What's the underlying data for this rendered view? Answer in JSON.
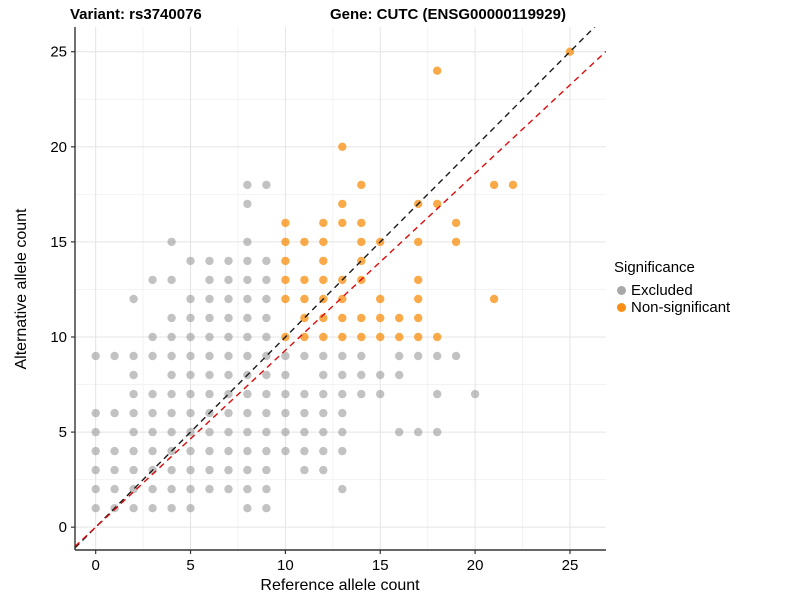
{
  "titles": {
    "left": "Variant: rs3740076",
    "right": "Gene: CUTC (ENSG00000119929)"
  },
  "chart_data": {
    "type": "scatter",
    "xlabel": "Reference allele count",
    "ylabel": "Alternative allele count",
    "xticks": [
      0,
      5,
      10,
      15,
      20,
      25
    ],
    "yticks": [
      0,
      5,
      10,
      15,
      20,
      25
    ],
    "xminor": [
      2.5,
      7.5,
      12.5,
      17.5,
      22.5
    ],
    "yminor": [
      2.5,
      7.5,
      12.5,
      17.5,
      22.5
    ],
    "xlim": [
      -1.09,
      26.9
    ],
    "ylim": [
      -1.2,
      26.3
    ],
    "grid": "major+minor",
    "legend": {
      "title": "Significance",
      "position": "right",
      "items": [
        {
          "label": "Excluded",
          "color": "#A8A8A8"
        },
        {
          "label": "Non-significant",
          "color": "#FB8E14"
        }
      ]
    },
    "lines": [
      {
        "name": "identity-line",
        "slope": 1.0,
        "intercept": 0,
        "color": "#1A1A1A",
        "dashed": true
      },
      {
        "name": "expected-ratio-line",
        "slope": 0.93,
        "intercept": 0,
        "color": "#DE0A0A",
        "dashed": true
      }
    ],
    "series": [
      {
        "name": "Excluded",
        "color": "#8F8F8F",
        "opacity": 0.55,
        "points": [
          [
            0,
            1
          ],
          [
            1,
            1
          ],
          [
            2,
            1
          ],
          [
            3,
            1
          ],
          [
            4,
            1
          ],
          [
            5,
            1
          ],
          [
            8,
            1
          ],
          [
            9,
            1
          ],
          [
            0,
            2
          ],
          [
            1,
            2
          ],
          [
            2,
            2
          ],
          [
            3,
            2
          ],
          [
            4,
            2
          ],
          [
            5,
            2
          ],
          [
            6,
            2
          ],
          [
            7,
            2
          ],
          [
            8,
            2
          ],
          [
            9,
            2
          ],
          [
            13,
            2
          ],
          [
            0,
            3
          ],
          [
            1,
            3
          ],
          [
            2,
            3
          ],
          [
            3,
            3
          ],
          [
            4,
            3
          ],
          [
            5,
            3
          ],
          [
            6,
            3
          ],
          [
            7,
            3
          ],
          [
            8,
            3
          ],
          [
            9,
            3
          ],
          [
            11,
            3
          ],
          [
            12,
            3
          ],
          [
            0,
            4
          ],
          [
            1,
            4
          ],
          [
            2,
            4
          ],
          [
            3,
            4
          ],
          [
            4,
            4
          ],
          [
            5,
            4
          ],
          [
            6,
            4
          ],
          [
            7,
            4
          ],
          [
            8,
            4
          ],
          [
            9,
            4
          ],
          [
            10,
            4
          ],
          [
            11,
            4
          ],
          [
            12,
            4
          ],
          [
            13,
            4
          ],
          [
            0,
            5
          ],
          [
            2,
            5
          ],
          [
            3,
            5
          ],
          [
            4,
            5
          ],
          [
            5,
            5
          ],
          [
            6,
            5
          ],
          [
            7,
            5
          ],
          [
            8,
            5
          ],
          [
            9,
            5
          ],
          [
            10,
            5
          ],
          [
            11,
            5
          ],
          [
            12,
            5
          ],
          [
            13,
            5
          ],
          [
            16,
            5
          ],
          [
            17,
            5
          ],
          [
            18,
            5
          ],
          [
            0,
            6
          ],
          [
            1,
            6
          ],
          [
            2,
            6
          ],
          [
            3,
            6
          ],
          [
            4,
            6
          ],
          [
            5,
            6
          ],
          [
            6,
            6
          ],
          [
            7,
            6
          ],
          [
            8,
            6
          ],
          [
            9,
            6
          ],
          [
            10,
            6
          ],
          [
            11,
            6
          ],
          [
            12,
            6
          ],
          [
            13,
            6
          ],
          [
            2,
            7
          ],
          [
            3,
            7
          ],
          [
            4,
            7
          ],
          [
            5,
            7
          ],
          [
            6,
            7
          ],
          [
            7,
            7
          ],
          [
            8,
            7
          ],
          [
            9,
            7
          ],
          [
            10,
            7
          ],
          [
            11,
            7
          ],
          [
            12,
            7
          ],
          [
            13,
            7
          ],
          [
            14,
            7
          ],
          [
            15,
            7
          ],
          [
            18,
            7
          ],
          [
            20,
            7
          ],
          [
            2,
            8
          ],
          [
            4,
            8
          ],
          [
            5,
            8
          ],
          [
            6,
            8
          ],
          [
            7,
            8
          ],
          [
            8,
            8
          ],
          [
            9,
            8
          ],
          [
            10,
            8
          ],
          [
            12,
            8
          ],
          [
            13,
            8
          ],
          [
            14,
            8
          ],
          [
            15,
            8
          ],
          [
            16,
            8
          ],
          [
            0,
            9
          ],
          [
            1,
            9
          ],
          [
            2,
            9
          ],
          [
            3,
            9
          ],
          [
            4,
            9
          ],
          [
            5,
            9
          ],
          [
            6,
            9
          ],
          [
            7,
            9
          ],
          [
            8,
            9
          ],
          [
            9,
            9
          ],
          [
            10,
            9
          ],
          [
            11,
            9
          ],
          [
            12,
            9
          ],
          [
            13,
            9
          ],
          [
            14,
            9
          ],
          [
            16,
            9
          ],
          [
            17,
            9
          ],
          [
            18,
            9
          ],
          [
            19,
            9
          ],
          [
            3,
            10
          ],
          [
            4,
            10
          ],
          [
            5,
            10
          ],
          [
            6,
            10
          ],
          [
            7,
            10
          ],
          [
            8,
            10
          ],
          [
            9,
            10
          ],
          [
            4,
            11
          ],
          [
            5,
            11
          ],
          [
            6,
            11
          ],
          [
            7,
            11
          ],
          [
            8,
            11
          ],
          [
            9,
            11
          ],
          [
            2,
            12
          ],
          [
            5,
            12
          ],
          [
            6,
            12
          ],
          [
            7,
            12
          ],
          [
            8,
            12
          ],
          [
            9,
            12
          ],
          [
            3,
            13
          ],
          [
            4,
            13
          ],
          [
            6,
            13
          ],
          [
            7,
            13
          ],
          [
            8,
            13
          ],
          [
            9,
            13
          ],
          [
            5,
            14
          ],
          [
            6,
            14
          ],
          [
            7,
            14
          ],
          [
            8,
            14
          ],
          [
            9,
            14
          ],
          [
            4,
            15
          ],
          [
            8,
            15
          ],
          [
            8,
            17
          ],
          [
            8,
            18
          ],
          [
            9,
            18
          ]
        ]
      },
      {
        "name": "Non-significant",
        "color": "#F98903",
        "opacity": 0.72,
        "points": [
          [
            10,
            10
          ],
          [
            11,
            10
          ],
          [
            12,
            10
          ],
          [
            13,
            10
          ],
          [
            14,
            10
          ],
          [
            15,
            10
          ],
          [
            16,
            10
          ],
          [
            17,
            10
          ],
          [
            18,
            10
          ],
          [
            11,
            11
          ],
          [
            12,
            11
          ],
          [
            13,
            11
          ],
          [
            14,
            11
          ],
          [
            15,
            11
          ],
          [
            16,
            11
          ],
          [
            17,
            11
          ],
          [
            10,
            12
          ],
          [
            11,
            12
          ],
          [
            12,
            12
          ],
          [
            13,
            12
          ],
          [
            15,
            12
          ],
          [
            17,
            12
          ],
          [
            21,
            12
          ],
          [
            10,
            13
          ],
          [
            11,
            13
          ],
          [
            12,
            13
          ],
          [
            13,
            13
          ],
          [
            14,
            13
          ],
          [
            17,
            13
          ],
          [
            10,
            14
          ],
          [
            12,
            14
          ],
          [
            14,
            14
          ],
          [
            10,
            15
          ],
          [
            11,
            15
          ],
          [
            12,
            15
          ],
          [
            14,
            15
          ],
          [
            15,
            15
          ],
          [
            17,
            15
          ],
          [
            19,
            15
          ],
          [
            10,
            16
          ],
          [
            12,
            16
          ],
          [
            13,
            16
          ],
          [
            14,
            16
          ],
          [
            19,
            16
          ],
          [
            13,
            17
          ],
          [
            17,
            17
          ],
          [
            18,
            17
          ],
          [
            14,
            18
          ],
          [
            21,
            18
          ],
          [
            22,
            18
          ],
          [
            13,
            20
          ],
          [
            18,
            24
          ],
          [
            25,
            25
          ]
        ]
      }
    ]
  },
  "style": {
    "grid_major_color": "#E4E4E4",
    "grid_minor_color": "#F3F3F3",
    "axis_line_color": "#333333",
    "tick_label_color": "#000000",
    "point_radius": 4.2
  }
}
